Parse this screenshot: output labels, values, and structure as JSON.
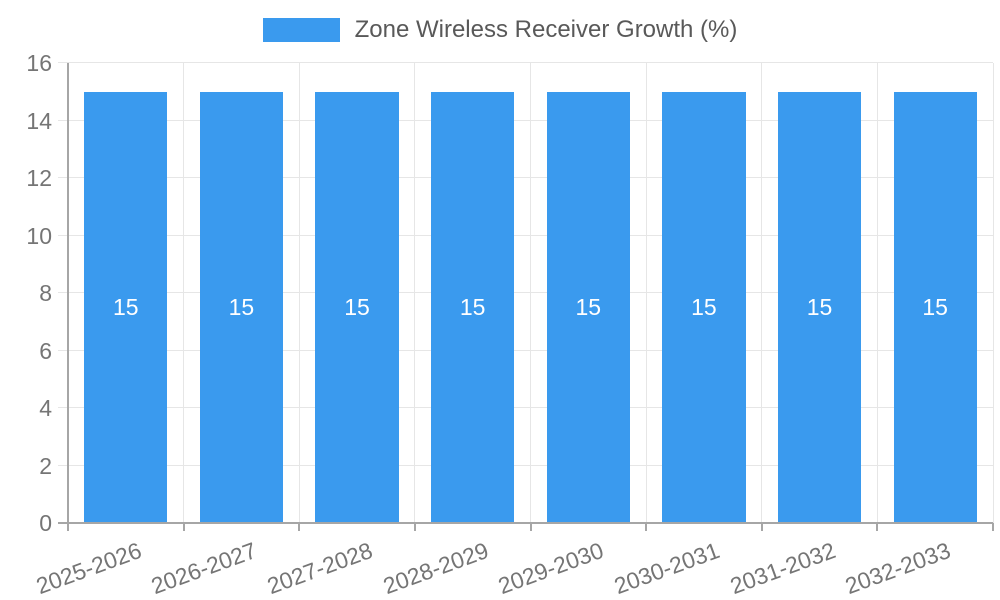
{
  "chart_data": {
    "type": "bar",
    "title": "",
    "legend": {
      "label": "Zone Wireless Receiver Growth (%)",
      "position": "top"
    },
    "categories": [
      "2025-2026",
      "2026-2027",
      "2027-2028",
      "2028-2029",
      "2029-2030",
      "2030-2031",
      "2031-2032",
      "2032-2033"
    ],
    "series": [
      {
        "name": "Zone Wireless Receiver Growth (%)",
        "values": [
          15,
          15,
          15,
          15,
          15,
          15,
          15,
          15
        ]
      }
    ],
    "bar_value_labels": [
      "15",
      "15",
      "15",
      "15",
      "15",
      "15",
      "15",
      "15"
    ],
    "xlabel": "",
    "ylabel": "",
    "ylim": [
      0,
      16
    ],
    "yticks": [
      0,
      2,
      4,
      6,
      8,
      10,
      12,
      14,
      16
    ],
    "grid": true,
    "x_label_rotation_deg": -20,
    "colors": {
      "bar": "#3a9aee",
      "grid": "#e6e6e6",
      "axis": "#a6a6a6",
      "tick_label": "#757575",
      "legend_text": "#595959",
      "bar_label": "#ffffff",
      "background": "#ffffff"
    }
  }
}
